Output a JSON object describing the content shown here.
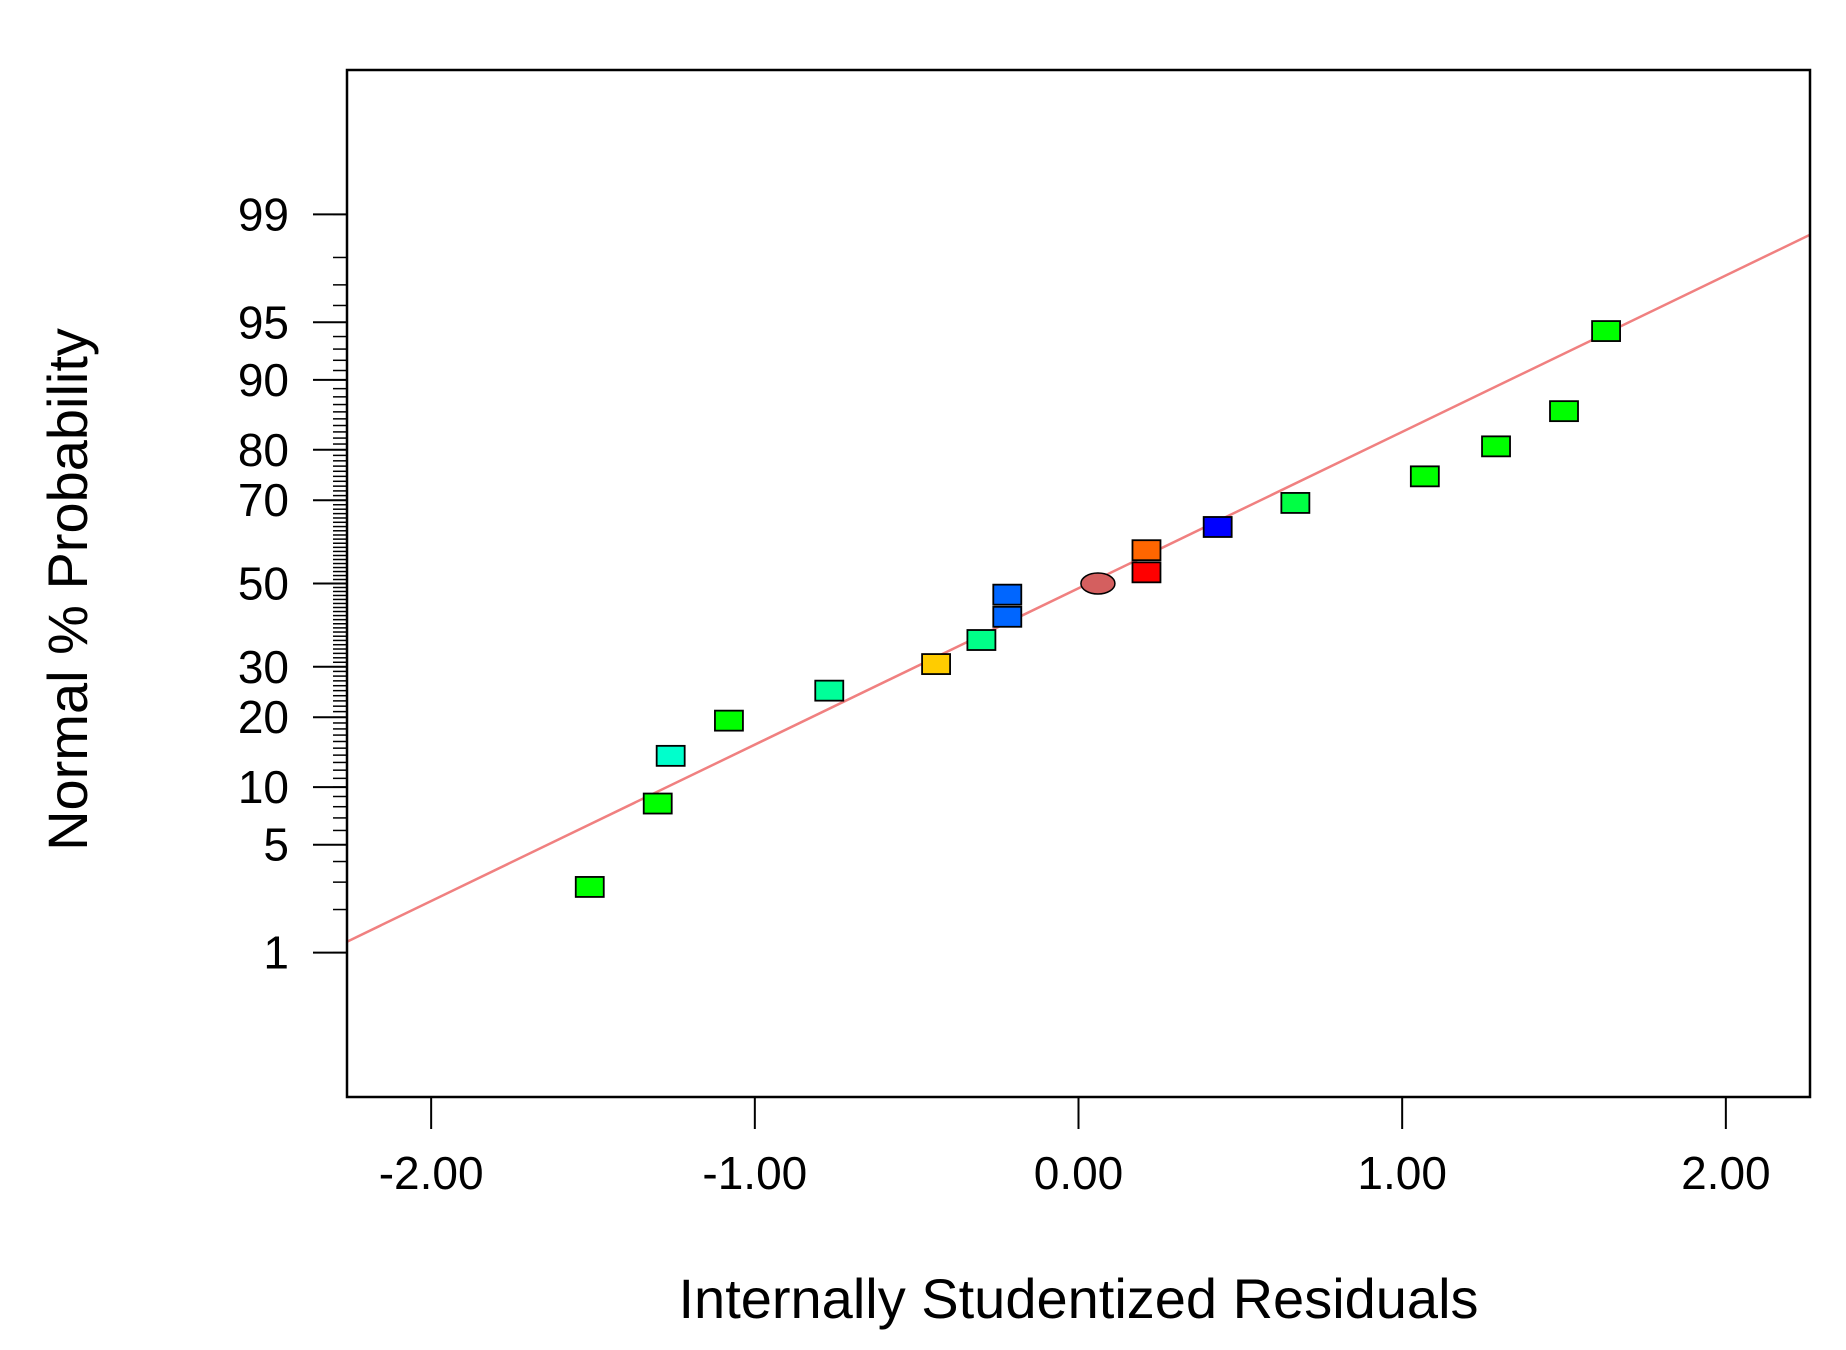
{
  "chart_data": {
    "type": "scatter",
    "title": "",
    "xlabel": "Internally Studentized Residuals",
    "ylabel": "Normal % Probability",
    "xlim": [
      -2.26,
      2.26
    ],
    "x_ticks": [
      -2.0,
      -1.0,
      0.0,
      1.0,
      2.0
    ],
    "x_tick_labels": [
      "-2.00",
      "-1.00",
      "0.00",
      "1.00",
      "2.00"
    ],
    "y_scale": "normal probability",
    "ylim_percent": [
      0.06,
      99.94
    ],
    "y_ticks": [
      1,
      5,
      10,
      20,
      30,
      50,
      70,
      80,
      90,
      95,
      99
    ],
    "y_tick_labels": [
      "1",
      "5",
      "10",
      "20",
      "30",
      "50",
      "70",
      "80",
      "90",
      "95",
      "99"
    ],
    "reference_line": {
      "color": "#f08080",
      "points": [
        [
          -2.26,
          1.2
        ],
        [
          2.26,
          98.6
        ]
      ]
    },
    "points": [
      {
        "x": -1.51,
        "y": 2.8,
        "color": "#00ff00",
        "marker": "square"
      },
      {
        "x": -1.3,
        "y": 8.3,
        "color": "#00ff00",
        "marker": "square"
      },
      {
        "x": -1.26,
        "y": 13.9,
        "color": "#00ffcc",
        "marker": "square"
      },
      {
        "x": -1.08,
        "y": 19.4,
        "color": "#00ff00",
        "marker": "square"
      },
      {
        "x": -0.77,
        "y": 25.0,
        "color": "#00ff99",
        "marker": "square"
      },
      {
        "x": -0.44,
        "y": 30.6,
        "color": "#ffcc00",
        "marker": "square"
      },
      {
        "x": -0.3,
        "y": 36.1,
        "color": "#00ff88",
        "marker": "square"
      },
      {
        "x": -0.22,
        "y": 41.7,
        "color": "#0066ff",
        "marker": "square"
      },
      {
        "x": -0.22,
        "y": 47.2,
        "color": "#0066ff",
        "marker": "square"
      },
      {
        "x": 0.06,
        "y": 50.0,
        "color": "#d45f5f",
        "marker": "ellipse"
      },
      {
        "x": 0.21,
        "y": 52.8,
        "color": "#ff0000",
        "marker": "square"
      },
      {
        "x": 0.21,
        "y": 58.3,
        "color": "#ff6600",
        "marker": "square"
      },
      {
        "x": 0.43,
        "y": 63.9,
        "color": "#0000ff",
        "marker": "square"
      },
      {
        "x": 0.67,
        "y": 69.4,
        "color": "#00ff44",
        "marker": "square"
      },
      {
        "x": 1.07,
        "y": 75.0,
        "color": "#00ff00",
        "marker": "square"
      },
      {
        "x": 1.29,
        "y": 80.6,
        "color": "#00ff00",
        "marker": "square"
      },
      {
        "x": 1.5,
        "y": 86.1,
        "color": "#00ff00",
        "marker": "square"
      },
      {
        "x": 1.63,
        "y": 94.4,
        "color": "#00ff00",
        "marker": "square"
      }
    ]
  }
}
